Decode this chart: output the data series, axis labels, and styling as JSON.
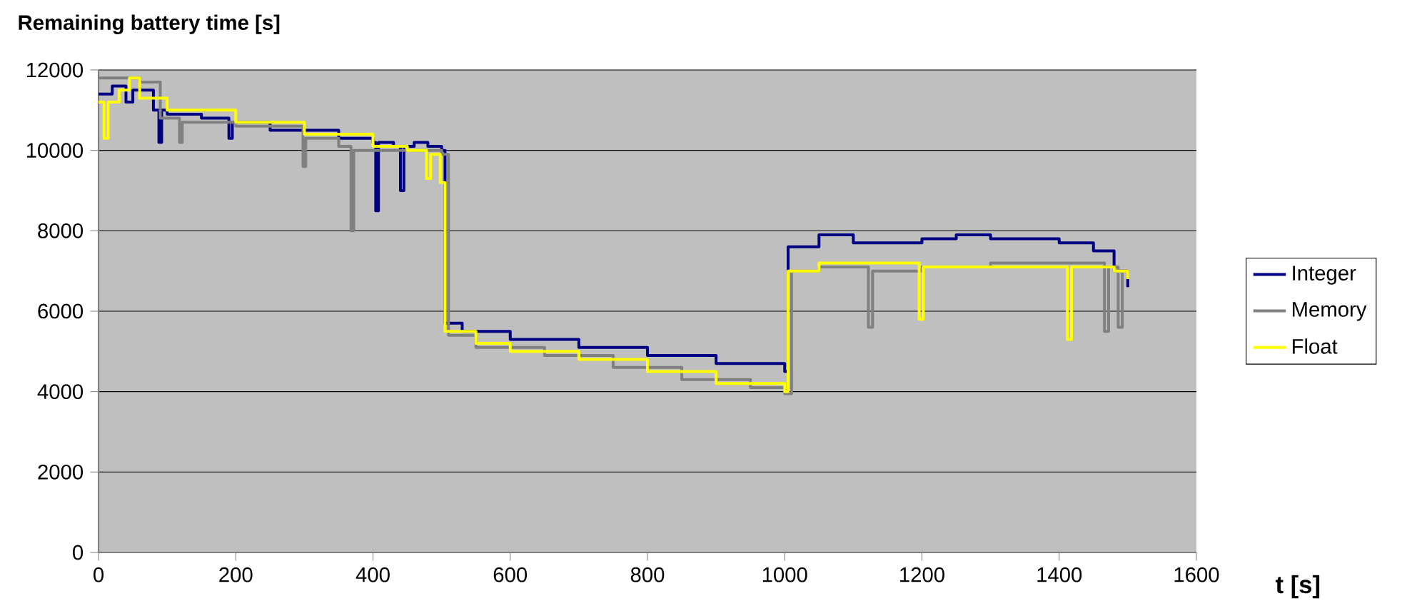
{
  "chart_data": {
    "type": "step",
    "title": "Remaining battery time [s]",
    "xlabel": "t [s]",
    "xlim": [
      0,
      1600
    ],
    "ylim": [
      0,
      12000
    ],
    "xticks": [
      0,
      200,
      400,
      600,
      800,
      1000,
      1200,
      1400,
      1600
    ],
    "yticks": [
      0,
      2000,
      4000,
      6000,
      8000,
      10000,
      12000
    ],
    "grid": "y",
    "legend": "right",
    "line_style": "solid",
    "marker": "none",
    "series": [
      {
        "name": "Integer",
        "color": "#000080",
        "x": [
          0,
          20,
          40,
          50,
          80,
          88,
          92,
          100,
          150,
          185,
          190,
          195,
          250,
          300,
          350,
          380,
          400,
          404,
          408,
          430,
          440,
          445,
          460,
          480,
          500,
          505,
          530,
          600,
          700,
          800,
          900,
          1000,
          1005,
          1050,
          1100,
          1200,
          1250,
          1300,
          1400,
          1450,
          1480,
          1500
        ],
        "values": [
          11400,
          11600,
          11200,
          11500,
          11000,
          10200,
          11000,
          10900,
          10800,
          10800,
          10300,
          10700,
          10500,
          10500,
          10300,
          10300,
          10200,
          8500,
          10200,
          10100,
          9000,
          10100,
          10200,
          10100,
          10000,
          5700,
          5500,
          5300,
          5100,
          4900,
          4700,
          4500,
          7600,
          7900,
          7700,
          7800,
          7900,
          7800,
          7700,
          7500,
          7000,
          6600
        ]
      },
      {
        "name": "Memory",
        "color": "#808080",
        "x": [
          0,
          40,
          60,
          90,
          118,
          122,
          200,
          298,
          302,
          350,
          365,
          368,
          372,
          400,
          500,
          510,
          550,
          650,
          750,
          850,
          950,
          1000,
          1010,
          1050,
          1122,
          1128,
          1200,
          1300,
          1400,
          1466,
          1472,
          1486,
          1492,
          1500
        ],
        "values": [
          11800,
          11800,
          11700,
          10800,
          10200,
          10700,
          10600,
          9600,
          10300,
          10100,
          10100,
          8000,
          10000,
          10000,
          9900,
          5400,
          5100,
          4900,
          4600,
          4300,
          4100,
          3950,
          7000,
          7100,
          5600,
          7000,
          7100,
          7200,
          7200,
          5500,
          7100,
          5600,
          7000,
          7000
        ]
      },
      {
        "name": "Float",
        "color": "#ffff00",
        "x": [
          0,
          8,
          14,
          30,
          45,
          60,
          100,
          200,
          300,
          400,
          450,
          478,
          484,
          490,
          498,
          505,
          550,
          600,
          700,
          800,
          900,
          1000,
          1005,
          1050,
          1196,
          1202,
          1250,
          1400,
          1412,
          1418,
          1430,
          1480,
          1500
        ],
        "values": [
          11200,
          10300,
          11200,
          11500,
          11800,
          11300,
          11000,
          10700,
          10400,
          10100,
          10000,
          9300,
          9900,
          9900,
          9200,
          5500,
          5200,
          5000,
          4800,
          4500,
          4200,
          4000,
          7000,
          7200,
          5800,
          7100,
          7100,
          7100,
          5300,
          7100,
          7100,
          7000,
          6800
        ]
      }
    ]
  }
}
